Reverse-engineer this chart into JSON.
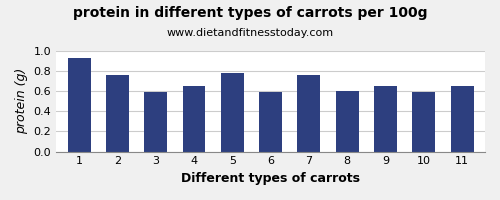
{
  "title": "protein in different types of carrots per 100g",
  "subtitle": "www.dietandfitnesstoday.com",
  "xlabel": "Different types of carrots",
  "ylabel": "protein (g)",
  "categories": [
    1,
    2,
    3,
    4,
    5,
    6,
    7,
    8,
    9,
    10,
    11
  ],
  "values": [
    0.93,
    0.76,
    0.59,
    0.65,
    0.78,
    0.59,
    0.76,
    0.6,
    0.65,
    0.59,
    0.65
  ],
  "bar_color": "#2d3f7f",
  "ylim": [
    0.0,
    1.0
  ],
  "yticks": [
    0.0,
    0.2,
    0.4,
    0.6,
    0.8,
    1.0
  ],
  "background_color": "#f0f0f0",
  "plot_bg_color": "#ffffff",
  "grid_color": "#cccccc",
  "title_fontsize": 10,
  "subtitle_fontsize": 8,
  "axis_label_fontsize": 9,
  "tick_fontsize": 8
}
